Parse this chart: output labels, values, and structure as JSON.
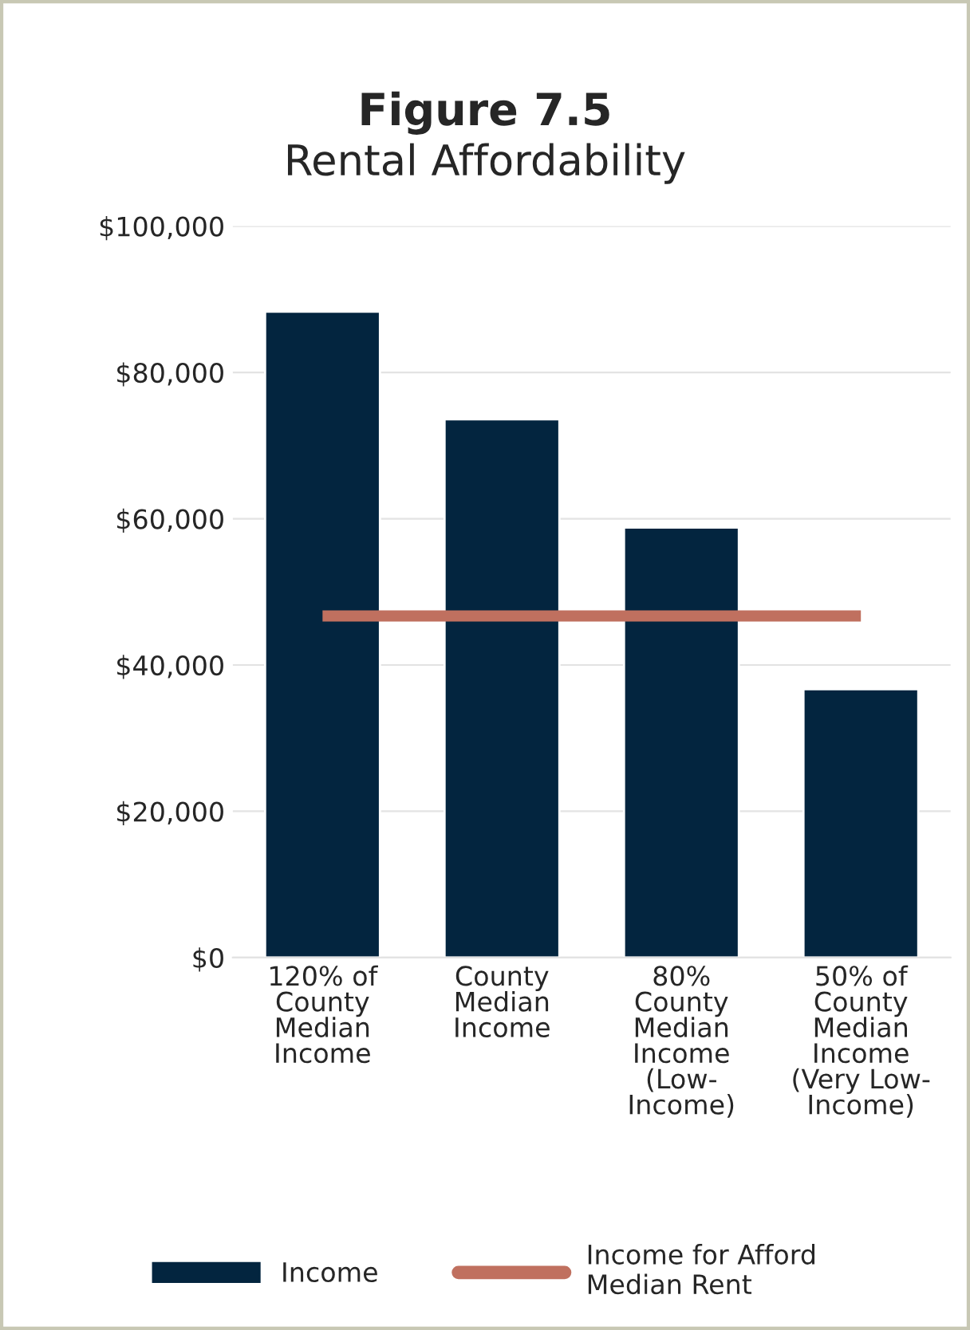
{
  "chart_data": {
    "type": "bar",
    "title": "Figure 7.5",
    "subtitle": "Rental Affordability",
    "categories": [
      "120% of\nCounty\nMedian\nIncome",
      "County\nMedian\nIncome",
      "80%\nCounty\nMedian\nIncome\n(Low-\nIncome)",
      "50% of\nCounty\nMedian\nIncome\n(Very Low-\nIncome)"
    ],
    "series": [
      {
        "name": "Income",
        "color": "#03253f",
        "values": [
          88300,
          73600,
          58800,
          36700
        ]
      },
      {
        "name": "Income for Afford\nMedian Rent",
        "type": "line",
        "color": "#c0705f",
        "values": [
          46700,
          46700,
          46700,
          46700
        ]
      }
    ],
    "ylim": [
      0,
      100000
    ],
    "yticks": [
      {
        "value": 0,
        "label": "$0"
      },
      {
        "value": 20000,
        "label": "$20,000"
      },
      {
        "value": 40000,
        "label": "$40,000"
      },
      {
        "value": 60000,
        "label": "$60,000"
      },
      {
        "value": 80000,
        "label": "$80,000"
      },
      {
        "value": 100000,
        "label": "$100,000"
      }
    ],
    "grid": "y",
    "legend": "bottom"
  }
}
